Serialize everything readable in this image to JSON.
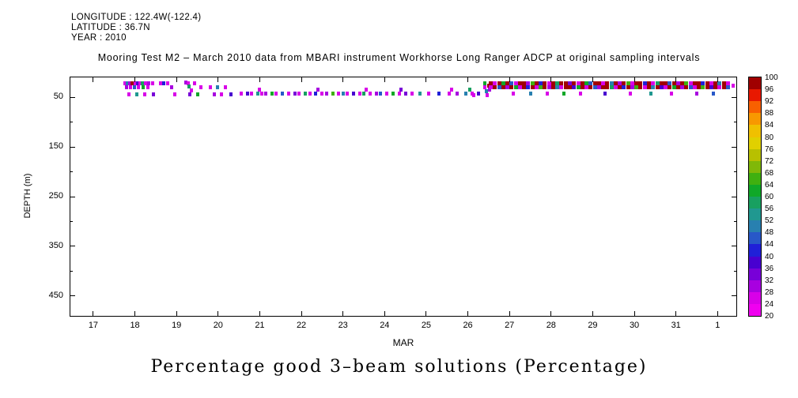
{
  "header": {
    "longitude": "LONGITUDE : 122.4W(-122.4)",
    "latitude": "LATITUDE : 36.7N",
    "year": "YEAR : 2010"
  },
  "title": "Mooring Test M2 – March 2010 data from MBARI instrument Workhorse Long Ranger ADCP at original sampling intervals",
  "caption": "Percentage good 3–beam solutions (Percentage)",
  "chart_data": {
    "type": "heatmap",
    "title": "Mooring Test M2 – March 2010 data from MBARI instrument Workhorse Long Ranger ADCP at original sampling intervals",
    "xlabel": "MAR",
    "ylabel": "DEPTH (m)",
    "value_units": "Percentage",
    "x_range_days": [
      16.45,
      32.45
    ],
    "depth_range_m": [
      10,
      490
    ],
    "x_ticks": [
      {
        "day": 17,
        "label": "17"
      },
      {
        "day": 18,
        "label": "18"
      },
      {
        "day": 19,
        "label": "19"
      },
      {
        "day": 20,
        "label": "20"
      },
      {
        "day": 21,
        "label": "21"
      },
      {
        "day": 22,
        "label": "22"
      },
      {
        "day": 23,
        "label": "23"
      },
      {
        "day": 24,
        "label": "24"
      },
      {
        "day": 25,
        "label": "25"
      },
      {
        "day": 26,
        "label": "26"
      },
      {
        "day": 27,
        "label": "27"
      },
      {
        "day": 28,
        "label": "28"
      },
      {
        "day": 29,
        "label": "29"
      },
      {
        "day": 30,
        "label": "30"
      },
      {
        "day": 31,
        "label": "31"
      },
      {
        "day": 32,
        "label": "1"
      }
    ],
    "y_ticks": [
      50,
      150,
      250,
      350,
      450
    ],
    "y_minor_ticks": [
      100,
      200,
      300,
      400
    ],
    "colorbar": {
      "min": 20,
      "max": 100,
      "tick_step": 4,
      "tick_labels": [
        "100",
        "96",
        "92",
        "88",
        "84",
        "80",
        "76",
        "72",
        "68",
        "64",
        "60",
        "56",
        "52",
        "48",
        "44",
        "40",
        "36",
        "32",
        "28",
        "24",
        "20"
      ],
      "colors_low_to_high": [
        "#f000f0",
        "#d800e8",
        "#a800e0",
        "#7800d8",
        "#4800d0",
        "#2020d8",
        "#2858c8",
        "#2880b0",
        "#209890",
        "#18a060",
        "#10a828",
        "#40b010",
        "#80b808",
        "#b8c000",
        "#e0d000",
        "#f0c000",
        "#f89800",
        "#f86000",
        "#e81800",
        "#a00000"
      ]
    },
    "cells": [
      [
        17.76,
        22,
        24
      ],
      [
        17.82,
        22,
        48
      ],
      [
        17.88,
        22,
        28
      ],
      [
        17.94,
        22,
        96
      ],
      [
        18.0,
        22,
        24
      ],
      [
        18.06,
        22,
        36
      ],
      [
        18.12,
        22,
        24
      ],
      [
        18.18,
        22,
        56
      ],
      [
        18.26,
        22,
        24
      ],
      [
        18.34,
        22,
        28
      ],
      [
        18.42,
        22,
        24
      ],
      [
        17.8,
        30,
        28
      ],
      [
        17.9,
        30,
        24
      ],
      [
        17.98,
        30,
        44
      ],
      [
        18.08,
        30,
        24
      ],
      [
        18.2,
        30,
        60
      ],
      [
        18.32,
        30,
        24
      ],
      [
        17.86,
        44,
        24
      ],
      [
        18.04,
        44,
        52
      ],
      [
        18.24,
        44,
        24
      ],
      [
        18.44,
        44,
        32
      ],
      [
        18.62,
        22,
        24
      ],
      [
        18.7,
        22,
        40
      ],
      [
        18.78,
        22,
        24
      ],
      [
        18.88,
        30,
        28
      ],
      [
        18.96,
        44,
        24
      ],
      [
        19.22,
        20,
        28
      ],
      [
        19.28,
        22,
        24
      ],
      [
        19.3,
        28,
        56
      ],
      [
        19.36,
        36,
        24
      ],
      [
        19.32,
        44,
        32
      ],
      [
        19.44,
        22,
        24
      ],
      [
        19.5,
        44,
        60
      ],
      [
        19.58,
        30,
        24
      ],
      [
        19.82,
        30,
        24
      ],
      [
        19.9,
        44,
        28
      ],
      [
        19.98,
        30,
        48
      ],
      [
        20.08,
        44,
        24
      ],
      [
        20.18,
        30,
        24
      ],
      [
        20.3,
        44,
        36
      ],
      [
        20.55,
        42,
        24
      ],
      [
        20.7,
        42,
        36
      ],
      [
        20.8,
        42,
        24
      ],
      [
        20.95,
        42,
        52
      ],
      [
        21.05,
        42,
        24
      ],
      [
        21.15,
        42,
        28
      ],
      [
        21.3,
        42,
        60
      ],
      [
        21.4,
        42,
        24
      ],
      [
        21.55,
        42,
        44
      ],
      [
        21.7,
        42,
        24
      ],
      [
        21.85,
        42,
        32
      ],
      [
        21.95,
        42,
        24
      ],
      [
        22.1,
        42,
        56
      ],
      [
        22.2,
        42,
        24
      ],
      [
        22.35,
        42,
        40
      ],
      [
        22.5,
        42,
        24
      ],
      [
        22.6,
        42,
        28
      ],
      [
        22.75,
        42,
        64
      ],
      [
        22.9,
        42,
        24
      ],
      [
        23.0,
        42,
        48
      ],
      [
        23.1,
        42,
        24
      ],
      [
        23.25,
        42,
        36
      ],
      [
        23.4,
        42,
        24
      ],
      [
        23.5,
        42,
        56
      ],
      [
        23.65,
        42,
        24
      ],
      [
        23.8,
        42,
        28
      ],
      [
        23.9,
        42,
        44
      ],
      [
        24.05,
        42,
        24
      ],
      [
        24.2,
        42,
        60
      ],
      [
        24.35,
        42,
        24
      ],
      [
        24.5,
        42,
        32
      ],
      [
        24.65,
        42,
        24
      ],
      [
        24.85,
        42,
        52
      ],
      [
        25.05,
        42,
        24
      ],
      [
        25.3,
        42,
        40
      ],
      [
        25.55,
        42,
        24
      ],
      [
        25.75,
        42,
        28
      ],
      [
        25.95,
        42,
        48
      ],
      [
        26.1,
        42,
        24
      ],
      [
        26.25,
        42,
        36
      ],
      [
        21.0,
        34,
        24
      ],
      [
        22.4,
        34,
        28
      ],
      [
        23.55,
        34,
        24
      ],
      [
        24.4,
        34,
        32
      ],
      [
        25.6,
        34,
        24
      ],
      [
        26.05,
        34,
        56
      ],
      [
        26.15,
        46,
        24
      ],
      [
        26.4,
        22,
        60
      ],
      [
        26.4,
        30,
        24
      ],
      [
        26.45,
        38,
        48
      ],
      [
        26.46,
        46,
        24
      ],
      [
        26.5,
        26,
        96
      ],
      [
        26.52,
        34,
        28
      ],
      [
        27.1,
        42,
        24
      ],
      [
        27.5,
        42,
        48
      ],
      [
        27.9,
        42,
        24
      ],
      [
        28.3,
        42,
        60
      ],
      [
        28.7,
        42,
        24
      ],
      [
        29.3,
        42,
        36
      ],
      [
        29.9,
        42,
        24
      ],
      [
        30.4,
        42,
        52
      ],
      [
        30.9,
        42,
        24
      ],
      [
        31.5,
        42,
        28
      ],
      [
        31.9,
        42,
        44
      ],
      [
        32.38,
        26,
        24
      ]
    ],
    "dense_bands": [
      {
        "start_day": 26.55,
        "step": 0.1,
        "depth_m": 22,
        "values": [
          100,
          24,
          96,
          60,
          100,
          44,
          24,
          100,
          96,
          28,
          64,
          100,
          40,
          96,
          24,
          100,
          56,
          96,
          100,
          32,
          96,
          24,
          100,
          60,
          44,
          96,
          100,
          24,
          96,
          48,
          100,
          28,
          96,
          64,
          24,
          100,
          96,
          40,
          100,
          24,
          56,
          96,
          100,
          44,
          96,
          28,
          100,
          64,
          24,
          96,
          100,
          40,
          96,
          24,
          100,
          48,
          96,
          24
        ]
      },
      {
        "start_day": 26.55,
        "step": 0.1,
        "depth_m": 30,
        "values": [
          24,
          96,
          44,
          100,
          28,
          96,
          60,
          24,
          100,
          40,
          96,
          24,
          64,
          100,
          28,
          96,
          48,
          24,
          100,
          96,
          36,
          60,
          100,
          24,
          96,
          44,
          28,
          100,
          96,
          56,
          24,
          100,
          40,
          96,
          28,
          64,
          100,
          24,
          96,
          48,
          100,
          36,
          24,
          96,
          60,
          100,
          28,
          96,
          44,
          24,
          100,
          64,
          96,
          36,
          100,
          24,
          96,
          44
        ]
      }
    ]
  }
}
